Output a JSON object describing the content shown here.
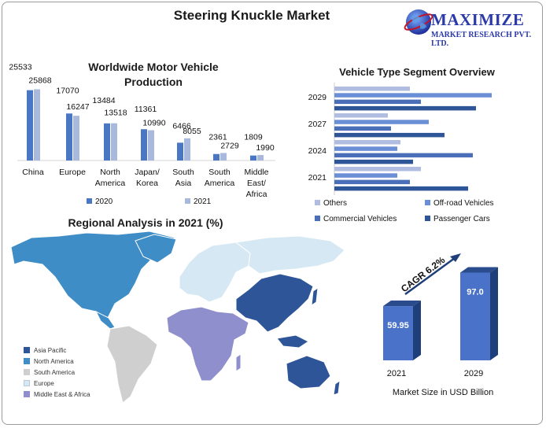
{
  "title": "Steering Knuckle Market",
  "logo": {
    "brand": "MAXIMIZE",
    "subtitle": "MARKET RESEARCH PVT. LTD."
  },
  "colors": {
    "dark_blue": "#2e5597",
    "mid_blue": "#4a77c4",
    "light_blue": "#a9b9de",
    "lavender": "#8e8fcc",
    "map_asia": "#2e5597",
    "map_north_america": "#3f8dc7",
    "map_south_america": "#cfcfcf",
    "map_europe": "#d6e8f3",
    "map_mea": "#8e8fcc"
  },
  "chart_data": [
    {
      "type": "bar",
      "title": "Worldwide Motor Vehicle Production",
      "categories": [
        "China",
        "Europe",
        "North America",
        "Japan/ Korea",
        "South Asia",
        "South America",
        "Middle East/ Africa"
      ],
      "series": [
        {
          "name": "2020",
          "values": [
            25533,
            17070,
            13484,
            11361,
            6466,
            2361,
            1809
          ]
        },
        {
          "name": "2021",
          "values": [
            25868,
            16247,
            13518,
            10990,
            8055,
            2729,
            1990
          ]
        }
      ],
      "xlabel": "",
      "ylabel": "",
      "legend_position": "bottom"
    },
    {
      "type": "bar",
      "orientation": "horizontal",
      "title": "Vehicle Type Segment Overview",
      "categories": [
        "2029",
        "2027",
        "2024",
        "2021"
      ],
      "series": [
        {
          "name": "Others",
          "values": [
            48,
            34,
            42,
            55
          ]
        },
        {
          "name": "Off-road Vehicles",
          "values": [
            100,
            60,
            40,
            40
          ]
        },
        {
          "name": "Commercial Vehicles",
          "values": [
            55,
            36,
            88,
            48
          ]
        },
        {
          "name": "Passenger Cars",
          "values": [
            90,
            70,
            50,
            85
          ]
        }
      ],
      "legend_position": "top"
    },
    {
      "type": "bar",
      "categories": [
        "2021",
        "2029"
      ],
      "values": [
        59.95,
        97.0
      ],
      "value_labels": [
        "59.95",
        "97.0"
      ],
      "annotation": "CAGR 6.2%",
      "xlabel": "Market Size in USD Billion"
    }
  ],
  "map": {
    "title": "Regional Analysis in 2021 (%)",
    "legend": [
      "Asia Pacific",
      "North America",
      "South America",
      "Europe",
      "Middle East & Africa"
    ]
  }
}
